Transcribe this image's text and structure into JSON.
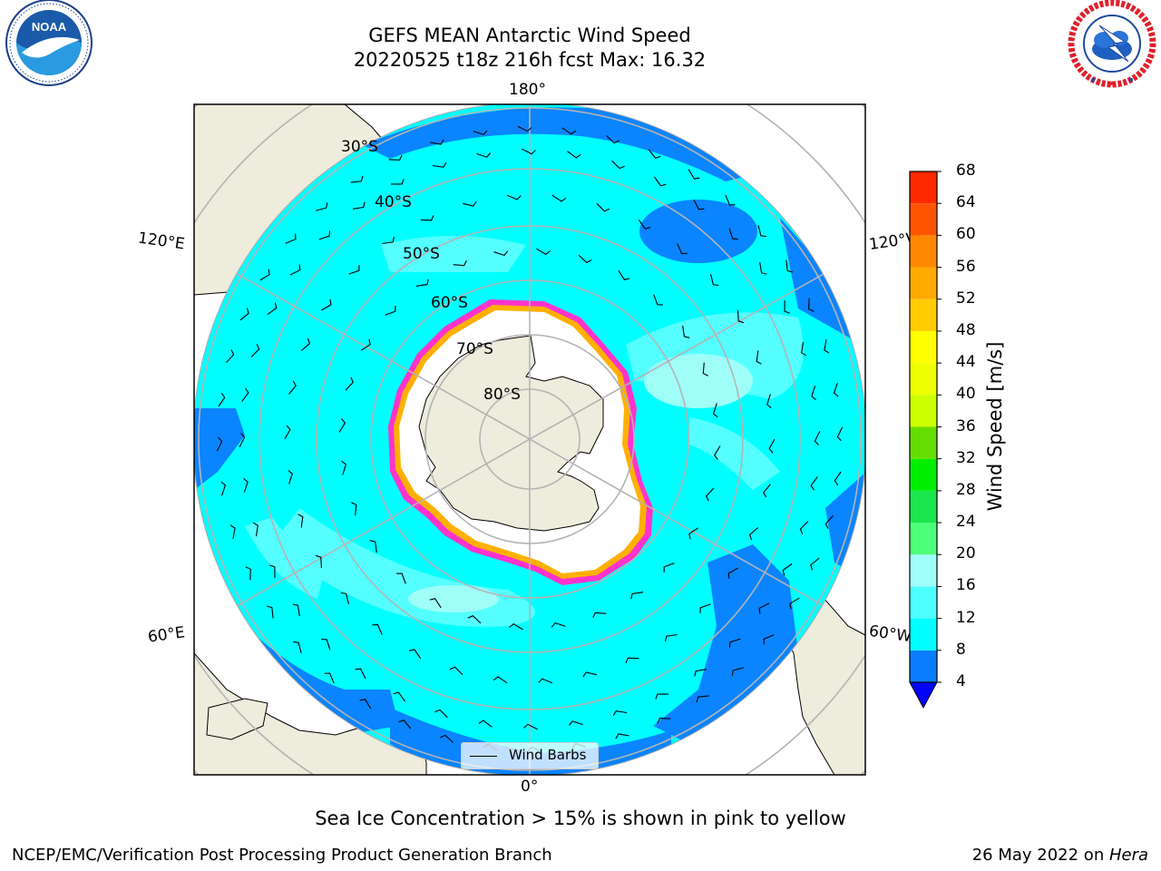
{
  "title": {
    "line1": "GEFS MEAN Antarctic Wind Speed",
    "line2": "20220525 t18z 216h fcst   Max: 16.32"
  },
  "map": {
    "projection": "south polar stereographic",
    "longitude_labels": [
      "180°",
      "120°E",
      "120°W",
      "60°E",
      "60°W",
      "0°"
    ],
    "latitude_labels": [
      "30°S",
      "40°S",
      "50°S",
      "60°S",
      "70°S",
      "80°S"
    ],
    "legend": {
      "entry": "Wind Barbs"
    },
    "colors": {
      "land": "#eeecdc",
      "sea_ice": "#ffffff",
      "sea_ice_edge": [
        "#ff33cc",
        "#ffb000",
        "#ffe040"
      ],
      "wind_4_8": "#0a84ff",
      "wind_8_12": "#00ffff",
      "wind_12_16": "#55ffff",
      "wind_16_20": "#9ffff8",
      "graticule": "#b4b4b4"
    }
  },
  "colorbar": {
    "label": "Wind Speed [m/s]",
    "ticks": [
      "68",
      "64",
      "60",
      "56",
      "52",
      "48",
      "44",
      "40",
      "36",
      "32",
      "28",
      "24",
      "20",
      "16",
      "12",
      "8",
      "4"
    ],
    "bins": [
      {
        "min": 4,
        "color": "#0a7dff"
      },
      {
        "min": 8,
        "color": "#00ffff"
      },
      {
        "min": 12,
        "color": "#4dffff"
      },
      {
        "min": 16,
        "color": "#a0fffa"
      },
      {
        "min": 20,
        "color": "#4dff7a"
      },
      {
        "min": 24,
        "color": "#1ae64d"
      },
      {
        "min": 28,
        "color": "#00ee00"
      },
      {
        "min": 32,
        "color": "#66dd00"
      },
      {
        "min": 36,
        "color": "#ccff00"
      },
      {
        "min": 40,
        "color": "#eeff00"
      },
      {
        "min": 44,
        "color": "#ffff00"
      },
      {
        "min": 48,
        "color": "#ffcc00"
      },
      {
        "min": 52,
        "color": "#ffaa00"
      },
      {
        "min": 56,
        "color": "#ff8800"
      },
      {
        "min": 60,
        "color": "#ff5500"
      },
      {
        "min": 64,
        "color": "#ff2a00"
      }
    ],
    "under_color": "#0000ff",
    "range": [
      4,
      68
    ]
  },
  "logos": {
    "noaa": {
      "text": "NOAA",
      "ring_text": "NATIONAL OCEANIC AND ATMOSPHERIC ADMINISTRATION · U.S. DEPARTMENT OF COMMERCE"
    },
    "nws": {
      "ring_text": "NATIONAL WEATHER SERVICE"
    }
  },
  "caption": "Sea Ice Concentration > 15% is shown in pink to yellow",
  "footer": {
    "left": "NCEP/EMC/Verification Post Processing Product Generation Branch",
    "right_date": "26 May 2022 on ",
    "right_host": "Hera"
  }
}
